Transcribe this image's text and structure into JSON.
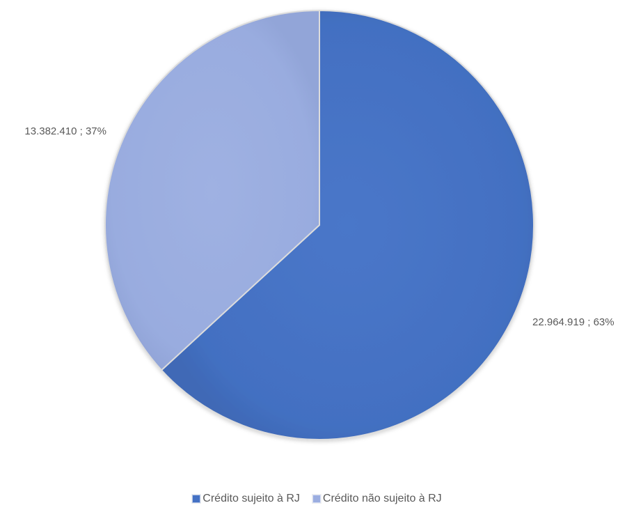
{
  "chart_data": {
    "type": "pie",
    "title": "",
    "slices": [
      {
        "name": "Crédito sujeito à RJ",
        "value": 22964919,
        "percent": 63,
        "label": "22.964.919 ; 63%",
        "color": "#4471C4"
      },
      {
        "name": "Crédito não sujeito à RJ",
        "value": 13382410,
        "percent": 37,
        "label": "13.382.410 ; 37%",
        "color": "#9BADE0"
      }
    ],
    "legend_position": "bottom",
    "start_angle_deg": 0,
    "direction": "clockwise"
  }
}
